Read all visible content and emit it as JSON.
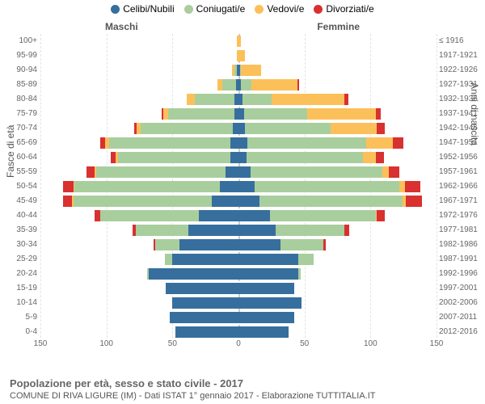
{
  "chart": {
    "type": "population-pyramid",
    "legend": [
      {
        "label": "Celibi/Nubili",
        "color": "#366f9e"
      },
      {
        "label": "Coniugati/e",
        "color": "#a9ce9d"
      },
      {
        "label": "Vedovi/e",
        "color": "#fcc05a"
      },
      {
        "label": "Divorziati/e",
        "color": "#d93030"
      }
    ],
    "side_titles": {
      "left": "Maschi",
      "right": "Femmine"
    },
    "y_axis_left_label": "Fasce di età",
    "y_axis_right_label": "Anni di nascita",
    "x_axis": {
      "max": 150,
      "ticks": [
        150,
        100,
        50,
        0,
        50,
        100,
        150
      ]
    },
    "title": "Popolazione per età, sesso e stato civile - 2017",
    "subtitle": "COMUNE DI RIVA LIGURE (IM) - Dati ISTAT 1° gennaio 2017 - Elaborazione TUTTITALIA.IT",
    "rows": [
      {
        "age": "100+",
        "birth": "≤ 1916",
        "m": [
          0,
          0,
          1,
          0
        ],
        "f": [
          0,
          0,
          2,
          0
        ]
      },
      {
        "age": "95-99",
        "birth": "1917-1921",
        "m": [
          0,
          0,
          1,
          0
        ],
        "f": [
          0,
          0,
          5,
          0
        ]
      },
      {
        "age": "90-94",
        "birth": "1922-1926",
        "m": [
          1,
          2,
          2,
          0
        ],
        "f": [
          1,
          1,
          15,
          0
        ]
      },
      {
        "age": "85-89",
        "birth": "1927-1931",
        "m": [
          2,
          10,
          4,
          0
        ],
        "f": [
          2,
          8,
          35,
          1
        ]
      },
      {
        "age": "80-84",
        "birth": "1932-1936",
        "m": [
          3,
          30,
          6,
          0
        ],
        "f": [
          3,
          22,
          55,
          3
        ]
      },
      {
        "age": "75-79",
        "birth": "1937-1941",
        "m": [
          3,
          50,
          4,
          1
        ],
        "f": [
          4,
          48,
          52,
          4
        ]
      },
      {
        "age": "70-74",
        "birth": "1942-1946",
        "m": [
          4,
          70,
          3,
          2
        ],
        "f": [
          5,
          65,
          35,
          6
        ]
      },
      {
        "age": "65-69",
        "birth": "1947-1951",
        "m": [
          6,
          92,
          3,
          4
        ],
        "f": [
          7,
          90,
          20,
          8
        ]
      },
      {
        "age": "60-64",
        "birth": "1952-1956",
        "m": [
          6,
          85,
          2,
          4
        ],
        "f": [
          6,
          88,
          10,
          6
        ]
      },
      {
        "age": "55-59",
        "birth": "1957-1961",
        "m": [
          10,
          98,
          1,
          6
        ],
        "f": [
          9,
          100,
          5,
          8
        ]
      },
      {
        "age": "50-54",
        "birth": "1962-1966",
        "m": [
          14,
          110,
          1,
          8
        ],
        "f": [
          12,
          110,
          4,
          12
        ]
      },
      {
        "age": "45-49",
        "birth": "1967-1971",
        "m": [
          20,
          105,
          1,
          7
        ],
        "f": [
          16,
          108,
          3,
          12
        ]
      },
      {
        "age": "40-44",
        "birth": "1972-1976",
        "m": [
          30,
          75,
          0,
          4
        ],
        "f": [
          24,
          80,
          1,
          6
        ]
      },
      {
        "age": "35-39",
        "birth": "1977-1981",
        "m": [
          38,
          40,
          0,
          2
        ],
        "f": [
          28,
          52,
          0,
          4
        ]
      },
      {
        "age": "30-34",
        "birth": "1982-1986",
        "m": [
          45,
          18,
          0,
          1
        ],
        "f": [
          32,
          32,
          0,
          2
        ]
      },
      {
        "age": "25-29",
        "birth": "1987-1991",
        "m": [
          50,
          6,
          0,
          0
        ],
        "f": [
          45,
          12,
          0,
          0
        ]
      },
      {
        "age": "20-24",
        "birth": "1992-1996",
        "m": [
          68,
          1,
          0,
          0
        ],
        "f": [
          45,
          2,
          0,
          0
        ]
      },
      {
        "age": "15-19",
        "birth": "1997-2001",
        "m": [
          55,
          0,
          0,
          0
        ],
        "f": [
          42,
          0,
          0,
          0
        ]
      },
      {
        "age": "10-14",
        "birth": "2002-2006",
        "m": [
          50,
          0,
          0,
          0
        ],
        "f": [
          48,
          0,
          0,
          0
        ]
      },
      {
        "age": "5-9",
        "birth": "2007-2011",
        "m": [
          52,
          0,
          0,
          0
        ],
        "f": [
          42,
          0,
          0,
          0
        ]
      },
      {
        "age": "0-4",
        "birth": "2012-2016",
        "m": [
          48,
          0,
          0,
          0
        ],
        "f": [
          38,
          0,
          0,
          0
        ]
      }
    ],
    "background_color": "#ffffff",
    "grid_color": "#e3e3e3"
  }
}
